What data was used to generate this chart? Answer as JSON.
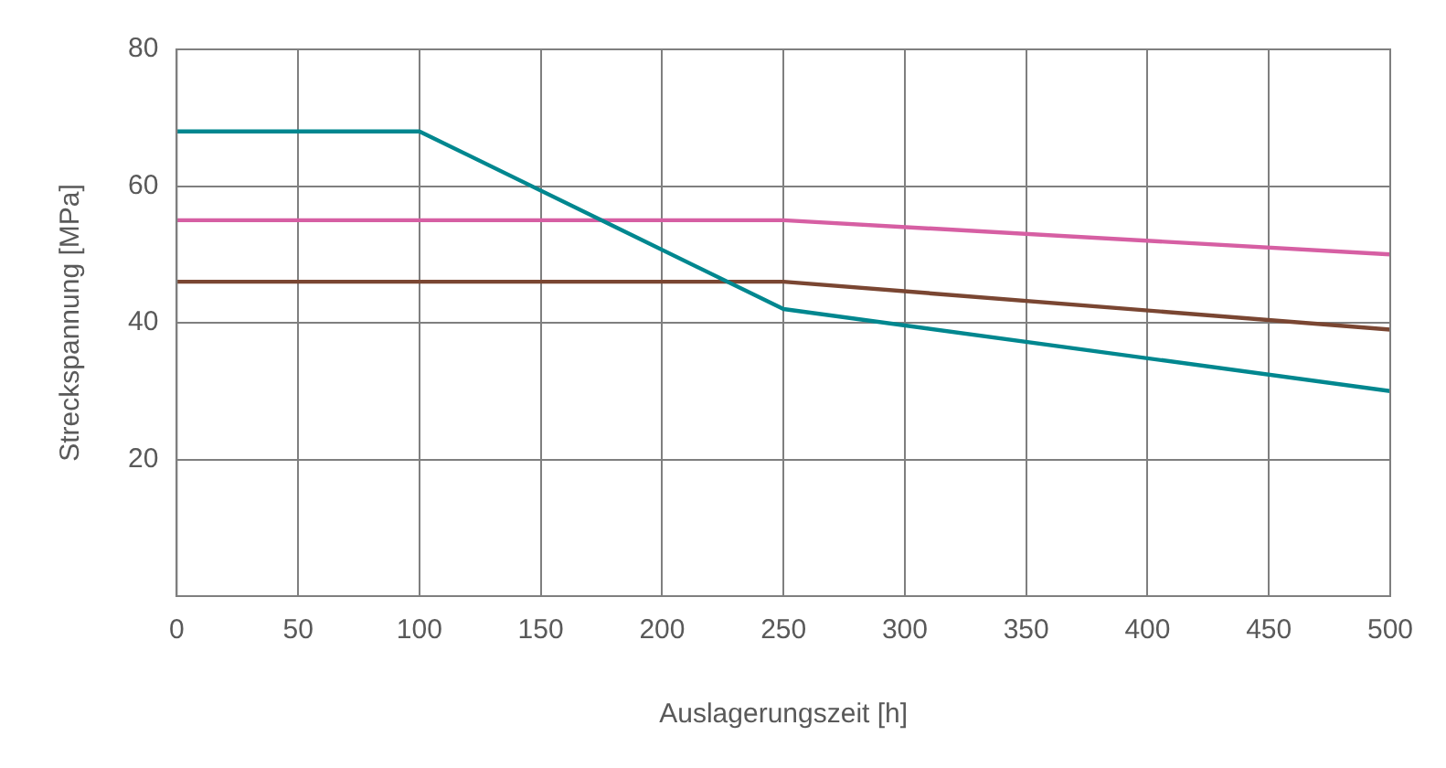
{
  "chart_data": {
    "type": "line",
    "xlabel": "Auslagerungszeit [h]",
    "ylabel": "Streckspannung [MPa]",
    "xlim": [
      0,
      500
    ],
    "xticks": [
      0,
      50,
      100,
      150,
      200,
      250,
      300,
      350,
      400,
      450,
      500
    ],
    "ylim": [
      0,
      80
    ],
    "yticks": [
      {
        "value": 0,
        "label": null
      },
      20,
      40,
      60,
      80
    ],
    "grid": true,
    "legend": false,
    "marker": "none",
    "line_style": "solid",
    "series": [
      {
        "color": "#00878f",
        "x": [
          0,
          100,
          250,
          500
        ],
        "values": [
          68,
          68,
          42,
          30
        ]
      },
      {
        "color": "#d65fa3",
        "x": [
          0,
          250,
          500
        ],
        "values": [
          55,
          55,
          50
        ]
      },
      {
        "color": "#7a4632",
        "x": [
          0,
          250,
          500
        ],
        "values": [
          46,
          46,
          39
        ]
      }
    ]
  }
}
